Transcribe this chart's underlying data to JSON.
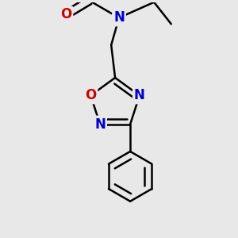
{
  "background_color": "#e8e8e8",
  "bond_color": "#000000",
  "n_color": "#0000cc",
  "o_color": "#cc0000",
  "bond_width": 1.8,
  "dbo": 0.045,
  "font_size_atoms": 12,
  "xlim": [
    -1.1,
    1.3
  ],
  "ylim": [
    -1.7,
    1.3
  ]
}
